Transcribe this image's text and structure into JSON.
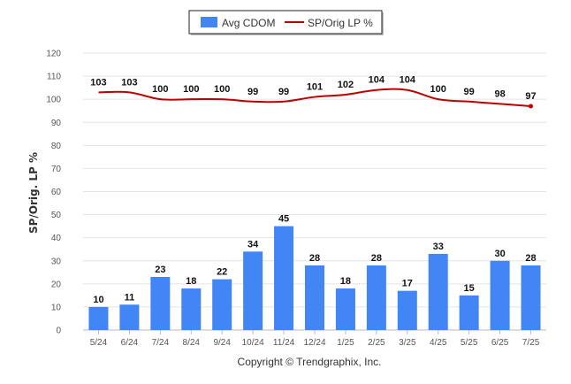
{
  "chart_data": {
    "type": "bar",
    "categories": [
      "5/24",
      "6/24",
      "7/24",
      "8/24",
      "9/24",
      "10/24",
      "11/24",
      "12/24",
      "1/25",
      "2/25",
      "3/25",
      "4/25",
      "5/25",
      "6/25",
      "7/25"
    ],
    "series": [
      {
        "name": "Avg CDOM",
        "type": "bar",
        "color": "#4285f4",
        "values": [
          10,
          11,
          23,
          18,
          22,
          34,
          45,
          28,
          18,
          28,
          17,
          33,
          15,
          30,
          28
        ]
      },
      {
        "name": "SP/Orig LP %",
        "type": "line",
        "color": "#c00000",
        "values": [
          103,
          103,
          100,
          100,
          100,
          99,
          99,
          101,
          102,
          104,
          104,
          100,
          99,
          98,
          97
        ]
      }
    ],
    "ylabel": "SP/Orig. LP %",
    "ylim": [
      0,
      120
    ],
    "yticks": [
      0,
      10,
      20,
      30,
      40,
      50,
      60,
      70,
      80,
      90,
      100,
      110,
      120
    ],
    "grid": true,
    "legend": "top-center",
    "credit": "Copyright © Trendgraphix, Inc."
  }
}
